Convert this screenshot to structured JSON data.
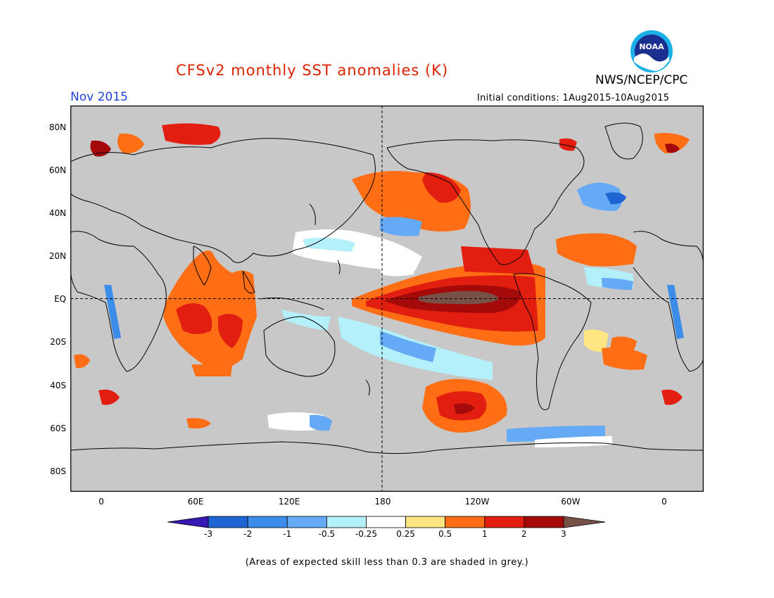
{
  "header": {
    "title": "CFSv2 monthly SST anomalies (K)",
    "title_color": "#dd2200",
    "agency": "NWS/NCEP/CPC",
    "valid_month": "Nov 2015",
    "valid_color": "#2244dd",
    "initial_conditions": "Initial conditions: 1Aug2015-10Aug2015",
    "logo_text": "NOAA"
  },
  "map": {
    "projection": "equirectangular",
    "lon_center": "180",
    "lat_labels": [
      "80N",
      "60N",
      "40N",
      "20N",
      "EQ",
      "20S",
      "40S",
      "60S",
      "80S"
    ],
    "lon_labels": [
      "0",
      "60E",
      "120E",
      "180",
      "120W",
      "60W",
      "0"
    ],
    "land_color": "#c8c8c8",
    "reference_lines": [
      "equator",
      "dateline"
    ]
  },
  "colorbar": {
    "ticks": [
      "-3",
      "-2",
      "-1",
      "-0.5",
      "-0.25",
      "0.25",
      "0.5",
      "1",
      "2",
      "3"
    ],
    "colors": [
      "#3a18b4",
      "#1e64d2",
      "#3c8cea",
      "#64aaf5",
      "#b4f0fa",
      "#ffffff",
      "#ffe682",
      "#ff6e14",
      "#e11e0f",
      "#a50a0a",
      "#785046"
    ]
  },
  "footnote": "(Areas of expected skill less than 0.3 are shaded in grey.)"
}
